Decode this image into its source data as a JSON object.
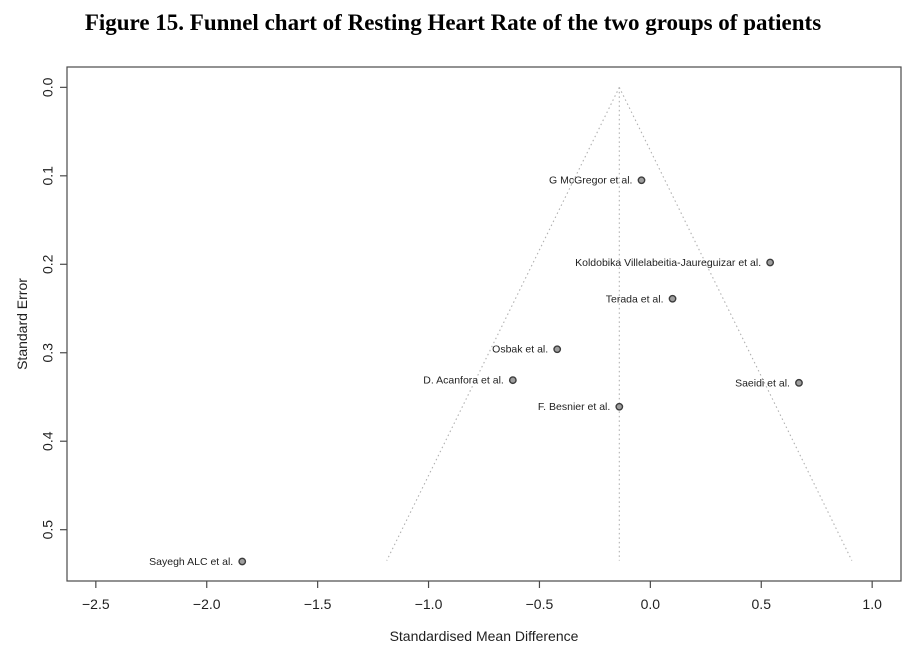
{
  "figure": {
    "title": "Figure 15. Funnel chart of Resting Heart Rate of the two groups of patients"
  },
  "chart_data": {
    "type": "scatter",
    "variant": "funnel-plot",
    "title": "Figure 15. Funnel chart of Resting Heart Rate of the two groups of patients",
    "xlabel": "Standardised Mean Difference",
    "ylabel": "Standard Error",
    "xlim": [
      -2.63,
      1.13
    ],
    "ylim": [
      -0.023,
      0.558
    ],
    "y_axis_inverted": true,
    "grid": false,
    "legend": false,
    "x_ticks": [
      -2.5,
      -2.0,
      -1.5,
      -1.0,
      -0.5,
      0.0,
      0.5,
      1.0
    ],
    "x_tick_labels": [
      "−2.5",
      "−2.0",
      "−1.5",
      "−1.0",
      "−0.5",
      "0.0",
      "0.5",
      "1.0"
    ],
    "y_ticks": [
      0.0,
      0.1,
      0.2,
      0.3,
      0.4,
      0.5
    ],
    "y_tick_labels": [
      "0.0",
      "0.1",
      "0.2",
      "0.3",
      "0.4",
      "0.5"
    ],
    "pooled_estimate": -0.14,
    "funnel": {
      "center": -0.14,
      "se_top": 0.0,
      "se_bottom": 0.535,
      "multiplier": 1.96
    },
    "points": [
      {
        "label": "G McGregor et al.",
        "x": -0.04,
        "se": 0.105
      },
      {
        "label": "Koldobika Villelabeitia-Jaureguizar et al.",
        "x": 0.54,
        "se": 0.198
      },
      {
        "label": "Terada et al.",
        "x": 0.1,
        "se": 0.239
      },
      {
        "label": "Osbak et al.",
        "x": -0.42,
        "se": 0.296
      },
      {
        "label": "D. Acanfora et al.",
        "x": -0.62,
        "se": 0.331
      },
      {
        "label": "Saeidi et al.",
        "x": 0.67,
        "se": 0.334
      },
      {
        "label": "F. Besnier et al.",
        "x": -0.14,
        "se": 0.361
      },
      {
        "label": "Sayegh ALC et al.",
        "x": -1.84,
        "se": 0.536
      }
    ],
    "colors": {
      "point_fill": "#9e9e9e",
      "point_stroke": "#3c3c3c",
      "funnel_line": "#b0b0b0",
      "axis": "#4a4a4a",
      "text": "#1f1f1f",
      "background": "#ffffff"
    }
  }
}
